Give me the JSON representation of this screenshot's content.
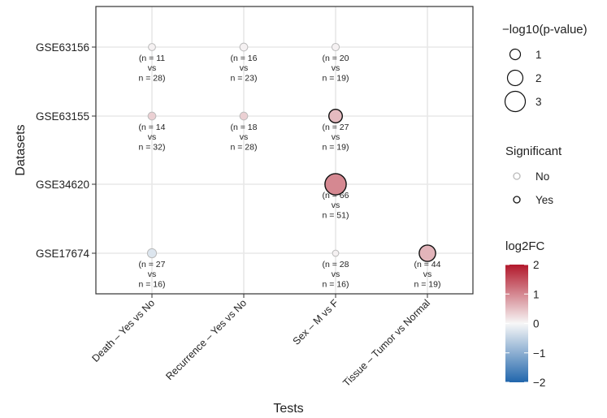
{
  "chart_data": {
    "type": "scatter",
    "title": "",
    "xlabel": "Tests",
    "ylabel": "Datasets",
    "categories_x": [
      "Death – Yes vs No",
      "Recurrence – Yes vs No",
      "Sex – M vs F",
      "Tissue – Tumor vs Normal"
    ],
    "categories_y": [
      "GSE63156",
      "GSE63155",
      "GSE34620",
      "GSE17674"
    ],
    "points": [
      {
        "x": "Death – Yes vs No",
        "y": "GSE63156",
        "neglog10p": 0.3,
        "log2fc": 0.05,
        "significant": "No",
        "n_label": [
          "(n = 11",
          "vs",
          "n = 28)"
        ]
      },
      {
        "x": "Recurrence – Yes vs No",
        "y": "GSE63156",
        "neglog10p": 0.45,
        "log2fc": 0.05,
        "significant": "No",
        "n_label": [
          "(n = 16",
          "vs",
          "n = 23)"
        ]
      },
      {
        "x": "Sex – M vs F",
        "y": "GSE63156",
        "neglog10p": 0.35,
        "log2fc": 0.05,
        "significant": "No",
        "n_label": [
          "(n = 20",
          "vs",
          "n = 19)"
        ]
      },
      {
        "x": "Death – Yes vs No",
        "y": "GSE63155",
        "neglog10p": 0.45,
        "log2fc": 0.35,
        "significant": "No",
        "n_label": [
          "(n = 14",
          "vs",
          "n = 32)"
        ]
      },
      {
        "x": "Recurrence – Yes vs No",
        "y": "GSE63155",
        "neglog10p": 0.45,
        "log2fc": 0.35,
        "significant": "No",
        "n_label": [
          "(n = 18",
          "vs",
          "n = 28)"
        ]
      },
      {
        "x": "Sex – M vs F",
        "y": "GSE63155",
        "neglog10p": 1.6,
        "log2fc": 0.55,
        "significant": "Yes",
        "n_label": [
          "(n = 27",
          "vs",
          "n = 19)"
        ]
      },
      {
        "x": "Sex – M vs F",
        "y": "GSE34620",
        "neglog10p": 3.2,
        "log2fc": 1.0,
        "significant": "Yes",
        "n_label": [
          "(n = 66",
          "vs",
          "n = 51)"
        ]
      },
      {
        "x": "Death – Yes vs No",
        "y": "GSE17674",
        "neglog10p": 0.7,
        "log2fc": -0.25,
        "significant": "No",
        "n_label": [
          "(n = 27",
          "vs",
          "n = 16)"
        ]
      },
      {
        "x": "Sex – M vs F",
        "y": "GSE17674",
        "neglog10p": 0.12,
        "log2fc": 0.05,
        "significant": "No",
        "n_label": [
          "(n = 28",
          "vs",
          "n = 16)"
        ]
      },
      {
        "x": "Tissue – Tumor vs Normal",
        "y": "GSE17674",
        "neglog10p": 2.2,
        "log2fc": 0.6,
        "significant": "Yes",
        "n_label": [
          "(n = 44",
          "vs",
          "n = 19)"
        ]
      }
    ],
    "legend_size": {
      "title": "−log10(p-value)",
      "values": [
        1,
        2,
        3
      ]
    },
    "legend_significant": {
      "title": "Significant",
      "values": [
        "No",
        "Yes"
      ],
      "stroke_colors": {
        "No": "#bbbbbb",
        "Yes": "#111111"
      }
    },
    "legend_color": {
      "title": "log2FC",
      "ticks": [
        2,
        1,
        0,
        -1,
        -2
      ],
      "tick_labels": [
        "2",
        "1",
        "0",
        "−1",
        "−2"
      ],
      "range": [
        -2,
        2
      ],
      "low_color": "#2166ac",
      "mid_color": "#f7f7f7",
      "high_color": "#b2182b"
    },
    "grid": true,
    "legend_placement": "right"
  }
}
